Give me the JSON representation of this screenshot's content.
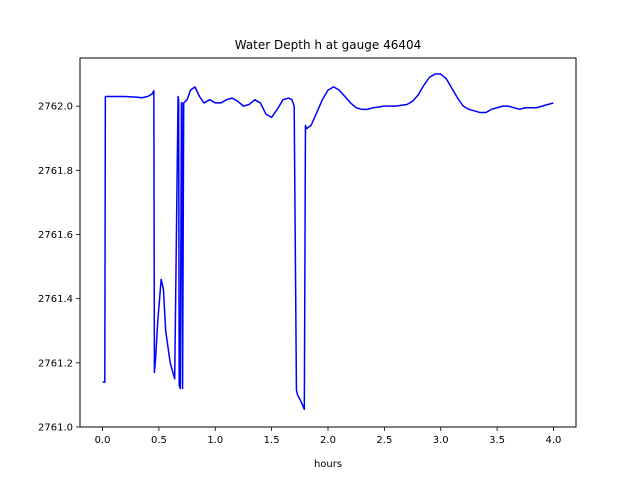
{
  "chart_data": {
    "type": "line",
    "title": "Water Depth h at gauge 46404",
    "xlabel": "hours",
    "ylabel": "",
    "xlim": [
      -0.2,
      4.2
    ],
    "ylim": [
      2761.0,
      2762.15
    ],
    "grid": false,
    "xticks": [
      0.0,
      0.5,
      1.0,
      1.5,
      2.0,
      2.5,
      3.0,
      3.5,
      4.0
    ],
    "xtick_labels": [
      "0.0",
      "0.5",
      "1.0",
      "1.5",
      "2.0",
      "2.5",
      "3.0",
      "3.5",
      "4.0"
    ],
    "yticks": [
      2761.0,
      2761.2,
      2761.4,
      2761.6,
      2761.8,
      2762.0
    ],
    "ytick_labels": [
      "2761.0",
      "2761.2",
      "2761.4",
      "2761.6",
      "2761.8",
      "2762.0"
    ],
    "series": [
      {
        "color": "#0000ff",
        "x": [
          0.0,
          0.02,
          0.025,
          0.03,
          0.1,
          0.2,
          0.3,
          0.35,
          0.4,
          0.44,
          0.455,
          0.46,
          0.47,
          0.49,
          0.52,
          0.54,
          0.56,
          0.6,
          0.64,
          0.67,
          0.675,
          0.68,
          0.69,
          0.7,
          0.705,
          0.71,
          0.72,
          0.75,
          0.78,
          0.82,
          0.86,
          0.9,
          0.95,
          1.0,
          1.05,
          1.1,
          1.15,
          1.2,
          1.25,
          1.3,
          1.35,
          1.4,
          1.45,
          1.5,
          1.55,
          1.6,
          1.65,
          1.68,
          1.7,
          1.72,
          1.73,
          1.76,
          1.79,
          1.8,
          1.81,
          1.85,
          1.9,
          1.95,
          2.0,
          2.05,
          2.1,
          2.15,
          2.2,
          2.25,
          2.3,
          2.35,
          2.4,
          2.5,
          2.6,
          2.7,
          2.75,
          2.8,
          2.85,
          2.9,
          2.95,
          3.0,
          3.05,
          3.1,
          3.15,
          3.2,
          3.25,
          3.3,
          3.35,
          3.4,
          3.45,
          3.5,
          3.55,
          3.6,
          3.65,
          3.7,
          3.75,
          3.8,
          3.85,
          3.9,
          3.95,
          4.0
        ],
        "y": [
          2761.14,
          2761.14,
          2762.03,
          2762.03,
          2762.03,
          2762.03,
          2762.028,
          2762.026,
          2762.03,
          2762.038,
          2762.048,
          2761.17,
          2761.21,
          2761.33,
          2761.46,
          2761.43,
          2761.3,
          2761.2,
          2761.15,
          2762.03,
          2762.02,
          2761.13,
          2761.12,
          2762.01,
          2762.01,
          2761.12,
          2762.01,
          2762.02,
          2762.05,
          2762.06,
          2762.03,
          2762.01,
          2762.02,
          2762.01,
          2762.01,
          2762.02,
          2762.025,
          2762.015,
          2762.0,
          2762.005,
          2762.02,
          2762.01,
          2761.975,
          2761.965,
          2761.99,
          2762.02,
          2762.025,
          2762.02,
          2762.0,
          2761.115,
          2761.1,
          2761.08,
          2761.055,
          2761.94,
          2761.93,
          2761.94,
          2761.98,
          2762.02,
          2762.05,
          2762.06,
          2762.05,
          2762.03,
          2762.01,
          2761.995,
          2761.99,
          2761.99,
          2761.995,
          2762.0,
          2762.0,
          2762.005,
          2762.015,
          2762.035,
          2762.065,
          2762.09,
          2762.1,
          2762.1,
          2762.085,
          2762.055,
          2762.025,
          2762.0,
          2761.99,
          2761.985,
          2761.98,
          2761.98,
          2761.99,
          2761.995,
          2762.0,
          2762.0,
          2761.995,
          2761.99,
          2761.995,
          2761.995,
          2761.995,
          2762.0,
          2762.005,
          2762.01
        ]
      }
    ]
  }
}
